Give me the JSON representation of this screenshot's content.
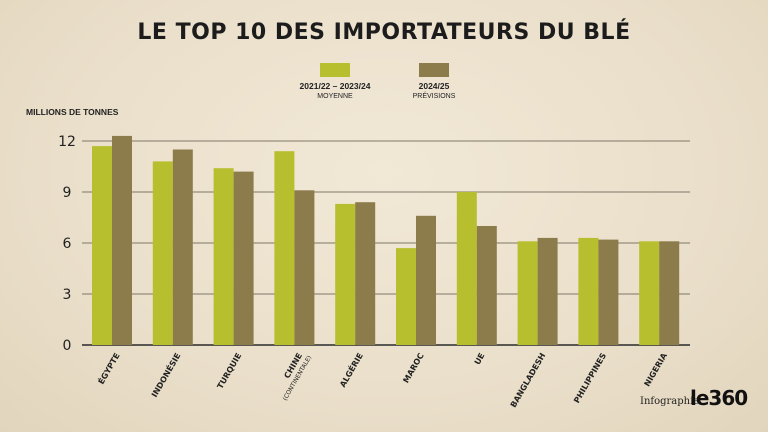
{
  "chart_data": {
    "type": "bar",
    "title": "LE TOP 10 DES IMPORTATEURS DU BLÉ",
    "ylabel": "MILLIONS DE TONNES",
    "xlabel": "",
    "ylim": [
      0,
      12
    ],
    "yticks": [
      0,
      3,
      6,
      9,
      12
    ],
    "grid": true,
    "legend_position": "top",
    "categories": [
      "ÉGYPTE",
      "INDONÉSIE",
      "TURQUIE",
      "CHINE",
      "ALGÉRIE",
      "MAROC",
      "UE",
      "BANGLADESH",
      "PHILIPPINES",
      "NIGERIA"
    ],
    "category_sublabels": [
      "",
      "",
      "",
      "(CONTINENTALE)",
      "",
      "",
      "",
      "",
      "",
      ""
    ],
    "series": [
      {
        "name": "2021/22 – 2023/24",
        "subname": "MOYENNE",
        "color": "#b8bf2e",
        "values": [
          11.7,
          10.8,
          10.4,
          11.4,
          8.3,
          5.7,
          9.0,
          6.1,
          6.3,
          6.1
        ]
      },
      {
        "name": "2024/25",
        "subname": "PRÉVISIONS",
        "color": "#8d7c4b",
        "values": [
          12.3,
          11.5,
          10.2,
          9.1,
          8.4,
          7.6,
          7.0,
          6.3,
          6.2,
          6.1
        ]
      }
    ]
  },
  "footer": {
    "credit": "Infographie",
    "logo": "le360"
  }
}
